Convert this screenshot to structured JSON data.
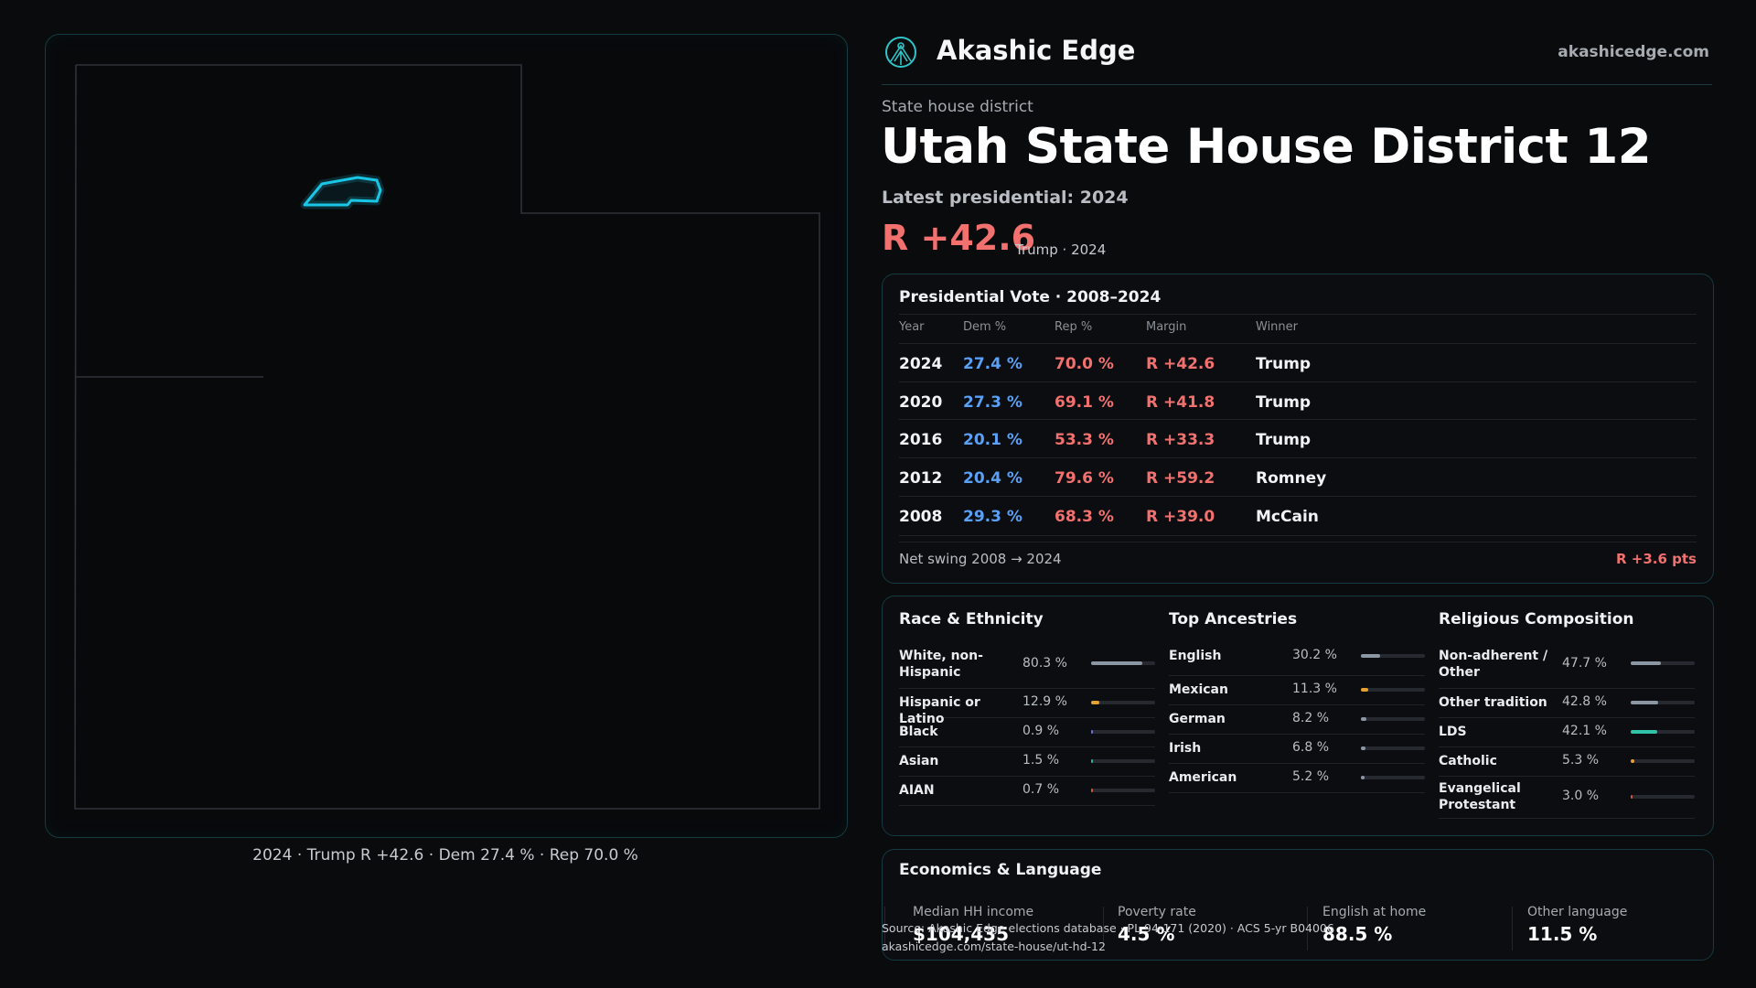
{
  "brand": {
    "name": "Akashic Edge",
    "url": "akashicedge.com",
    "icon": "akashic-edge-logo-icon"
  },
  "header": {
    "kicker": "State house district",
    "title": "Utah State House District 12",
    "latest_label": "Latest presidential: 2024",
    "margin": "R +42.6",
    "margin_sub": "Trump · 2024"
  },
  "map": {
    "caption": "2024 · Trump R +42.6 · Dem 27.4 % · Rep 70.0 %",
    "district_color": "#19c6e6"
  },
  "presidential": {
    "title": "Presidential Vote · 2008–2024",
    "columns": [
      "Year",
      "Dem %",
      "Rep %",
      "Margin",
      "Winner"
    ],
    "rows": [
      {
        "year": "2024",
        "dem": "27.4 %",
        "rep": "70.0 %",
        "margin": "R +42.6",
        "winner": "Trump"
      },
      {
        "year": "2020",
        "dem": "27.3 %",
        "rep": "69.1 %",
        "margin": "R +41.8",
        "winner": "Trump"
      },
      {
        "year": "2016",
        "dem": "20.1 %",
        "rep": "53.3 %",
        "margin": "R +33.3",
        "winner": "Trump"
      },
      {
        "year": "2012",
        "dem": "20.4 %",
        "rep": "79.6 %",
        "margin": "R +59.2",
        "winner": "Romney"
      },
      {
        "year": "2008",
        "dem": "29.3 %",
        "rep": "68.3 %",
        "margin": "R +39.0",
        "winner": "McCain"
      }
    ],
    "swing_label": "Net swing 2008 → 2024",
    "swing_value": "R +3.6 pts",
    "colors": {
      "dem": "#5aa0f5",
      "rep": "#f2716f"
    }
  },
  "race": {
    "title": "Race & Ethnicity",
    "items": [
      {
        "label": "White, non-Hispanic",
        "value": "80.3 %",
        "share": 0.803,
        "color": "#8d96a3"
      },
      {
        "label": "Hispanic or Latino",
        "value": "12.9 %",
        "share": 0.129,
        "color": "#e8a030"
      },
      {
        "label": "Black",
        "value": "0.9 %",
        "share": 0.009,
        "color": "#6a72d8"
      },
      {
        "label": "Asian",
        "value": "1.5 %",
        "share": 0.015,
        "color": "#2fb39a"
      },
      {
        "label": "AIAN",
        "value": "0.7 %",
        "share": 0.007,
        "color": "#d0563d"
      }
    ]
  },
  "ancestry": {
    "title": "Top Ancestries",
    "items": [
      {
        "label": "English",
        "value": "30.2 %",
        "share": 0.302,
        "color": "#8d96a3"
      },
      {
        "label": "Mexican",
        "value": "11.3 %",
        "share": 0.113,
        "color": "#e8a030"
      },
      {
        "label": "German",
        "value": "8.2 %",
        "share": 0.082,
        "color": "#8d96a3"
      },
      {
        "label": "Irish",
        "value": "6.8 %",
        "share": 0.068,
        "color": "#8d96a3"
      },
      {
        "label": "American",
        "value": "5.2 %",
        "share": 0.052,
        "color": "#8d96a3"
      }
    ]
  },
  "religion": {
    "title": "Religious Composition",
    "items": [
      {
        "label": "Non-adherent / Other",
        "value": "47.7 %",
        "share": 0.477,
        "color": "#8d96a3"
      },
      {
        "label": "Other tradition",
        "value": "42.8 %",
        "share": 0.428,
        "color": "#8d96a3"
      },
      {
        "label": "LDS",
        "value": "42.1 %",
        "share": 0.421,
        "color": "#2fc4a8"
      },
      {
        "label": "Catholic",
        "value": "5.3 %",
        "share": 0.053,
        "color": "#e8a030"
      },
      {
        "label": "Evangelical Protestant",
        "value": "3.0 %",
        "share": 0.03,
        "color": "#d0563d"
      }
    ]
  },
  "economics": {
    "title": "Economics & Language",
    "stats": [
      {
        "label": "Median HH income",
        "value": "$104,435"
      },
      {
        "label": "Poverty rate",
        "value": "4.5 %"
      },
      {
        "label": "English at home",
        "value": "88.5 %"
      },
      {
        "label": "Other language",
        "value": "11.5 %"
      }
    ]
  },
  "footer": {
    "source": "Source: Akashic Edge elections database · PL 94-171 (2020) · ACS 5-yr B04006",
    "link": "akashicedge.com/state-house/ut-hd-12"
  }
}
